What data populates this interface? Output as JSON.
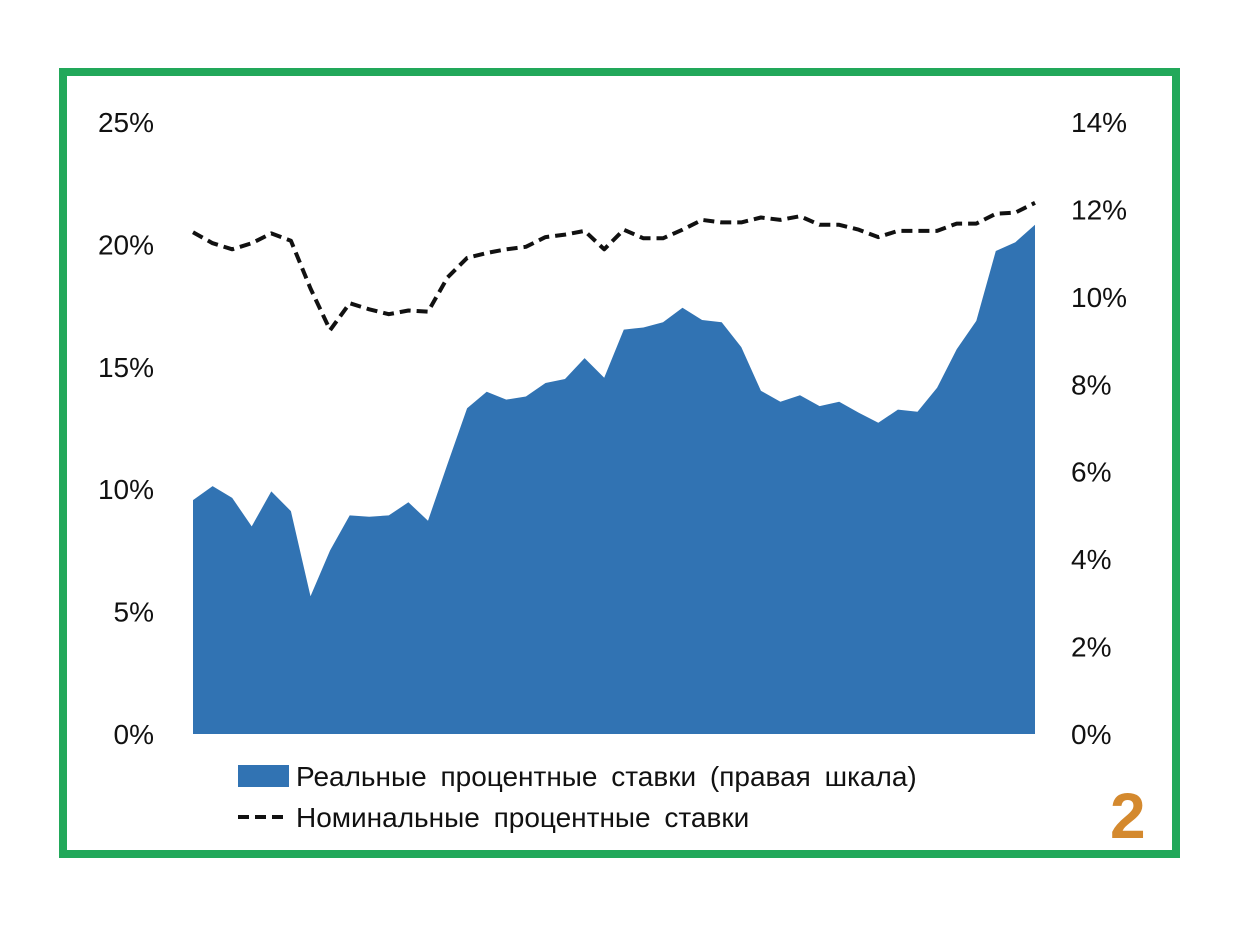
{
  "chart_data": {
    "type": "area",
    "title": "",
    "xlabel": "",
    "y_left_label": "",
    "y_right_label": "",
    "ylim_left": [
      0,
      25
    ],
    "ylim_right": [
      0,
      14
    ],
    "left_ticks": [
      "0%",
      "5%",
      "10%",
      "15%",
      "20%",
      "25%"
    ],
    "right_ticks": [
      "0%",
      "2%",
      "4%",
      "6%",
      "8%",
      "10%",
      "12%",
      "14%"
    ],
    "grid": false,
    "legend_position": "bottom",
    "series": [
      {
        "name": "Реальные процентные ставки (правая шкала)",
        "kind": "area",
        "axis": "right",
        "color": "#3173b3",
        "values": [
          5.35,
          5.67,
          5.4,
          4.75,
          5.55,
          5.1,
          3.15,
          4.2,
          5.0,
          4.97,
          5.0,
          5.3,
          4.88,
          6.18,
          7.45,
          7.83,
          7.65,
          7.72,
          8.03,
          8.12,
          8.6,
          8.15,
          9.25,
          9.3,
          9.42,
          9.75,
          9.47,
          9.42,
          8.85,
          7.85,
          7.6,
          7.75,
          7.5,
          7.6,
          7.35,
          7.12,
          7.42,
          7.37,
          7.92,
          8.8,
          9.45,
          11.05,
          11.25,
          11.65
        ]
      },
      {
        "name": "Номинальные процентные ставки",
        "kind": "line-dashed",
        "axis": "left",
        "color": "#111111",
        "values": [
          20.5,
          20.05,
          19.8,
          20.05,
          20.45,
          20.15,
          18.2,
          16.5,
          17.6,
          17.35,
          17.15,
          17.3,
          17.25,
          18.65,
          19.45,
          19.65,
          19.8,
          19.9,
          20.3,
          20.4,
          20.55,
          19.8,
          20.6,
          20.25,
          20.25,
          20.6,
          21.0,
          20.9,
          20.9,
          21.1,
          21.0,
          21.15,
          20.8,
          20.8,
          20.6,
          20.3,
          20.55,
          20.55,
          20.55,
          20.85,
          20.85,
          21.25,
          21.3,
          21.7
        ]
      }
    ]
  },
  "legend": {
    "area_label": "Реальные процентные ставки (правая шкала)",
    "line_label": "Номинальные процентные ставки"
  },
  "badge": {
    "text": "2",
    "color": "#d4892e"
  },
  "frame_color": "#22a85a"
}
